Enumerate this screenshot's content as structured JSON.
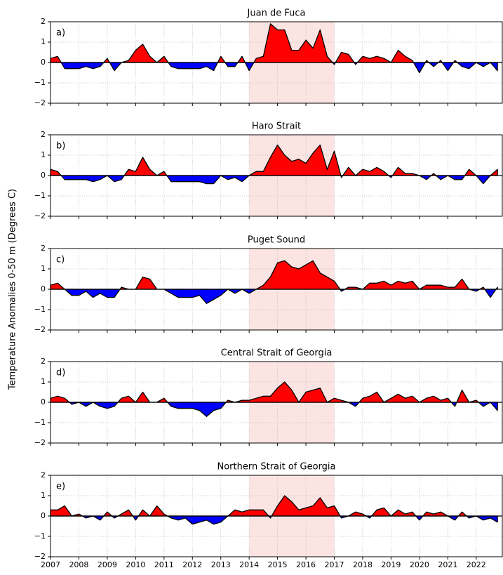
{
  "ylabel": "Temperature Anomalies 0-50 m (Degrees C)",
  "chart_data": [
    {
      "type": "area",
      "title": "Juan de Fuca",
      "panel_label": "a)",
      "positive_color": "#ff0000",
      "negative_color": "#0000ff",
      "highlight": [
        2014,
        2017
      ],
      "highlight_color": "#fbe4e2",
      "grid": true,
      "xlim": [
        2007,
        2022.92
      ],
      "ylim": [
        -2,
        2
      ],
      "xticks": [
        2007,
        2008,
        2009,
        2010,
        2011,
        2012,
        2013,
        2014,
        2015,
        2016,
        2017,
        2018,
        2019,
        2020,
        2021,
        2022
      ],
      "yticks": [
        {
          "value": -2,
          "label": "−2"
        },
        {
          "value": -1,
          "label": "−1"
        },
        0,
        1,
        2
      ],
      "x": [
        2007,
        2007.25,
        2007.5,
        2007.75,
        2008,
        2008.25,
        2008.5,
        2008.75,
        2009,
        2009.25,
        2009.5,
        2009.75,
        2010,
        2010.25,
        2010.5,
        2010.75,
        2011,
        2011.25,
        2011.5,
        2011.75,
        2012,
        2012.25,
        2012.5,
        2012.75,
        2013,
        2013.25,
        2013.5,
        2013.75,
        2014,
        2014.25,
        2014.5,
        2014.75,
        2015,
        2015.25,
        2015.5,
        2015.75,
        2016,
        2016.25,
        2016.5,
        2016.75,
        2017,
        2017.25,
        2017.5,
        2017.75,
        2018,
        2018.25,
        2018.5,
        2018.75,
        2019,
        2019.25,
        2019.5,
        2019.75,
        2020,
        2020.25,
        2020.5,
        2020.75,
        2021,
        2021.25,
        2021.5,
        2021.75,
        2022,
        2022.25,
        2022.5,
        2022.75
      ],
      "values": [
        0.2,
        0.3,
        -0.3,
        -0.3,
        -0.3,
        -0.2,
        -0.3,
        -0.2,
        0.2,
        -0.4,
        0.0,
        0.1,
        0.6,
        0.9,
        0.3,
        0.0,
        0.3,
        -0.2,
        -0.3,
        -0.3,
        -0.3,
        -0.3,
        -0.2,
        -0.4,
        0.3,
        -0.2,
        -0.2,
        0.3,
        -0.4,
        0.2,
        0.3,
        1.9,
        1.6,
        1.6,
        0.6,
        0.6,
        1.1,
        0.7,
        1.6,
        0.3,
        -0.1,
        0.5,
        0.4,
        -0.1,
        0.3,
        0.2,
        0.3,
        0.2,
        0.0,
        0.6,
        0.3,
        0.1,
        -0.5,
        0.1,
        -0.2,
        0.1,
        -0.4,
        0.1,
        -0.2,
        -0.3,
        0.0,
        -0.2,
        0.0,
        -0.4
      ]
    },
    {
      "type": "area",
      "title": "Haro Strait",
      "panel_label": "b)",
      "positive_color": "#ff0000",
      "negative_color": "#0000ff",
      "highlight": [
        2014,
        2017
      ],
      "highlight_color": "#fbe4e2",
      "grid": true,
      "xlim": [
        2007,
        2022.92
      ],
      "ylim": [
        -2,
        2
      ],
      "xticks": [
        2007,
        2008,
        2009,
        2010,
        2011,
        2012,
        2013,
        2014,
        2015,
        2016,
        2017,
        2018,
        2019,
        2020,
        2021,
        2022
      ],
      "yticks": [
        {
          "value": -2,
          "label": "−2"
        },
        {
          "value": -1,
          "label": "−1"
        },
        0,
        1,
        2
      ],
      "x": [
        2007,
        2007.25,
        2007.5,
        2007.75,
        2008,
        2008.25,
        2008.5,
        2008.75,
        2009,
        2009.25,
        2009.5,
        2009.75,
        2010,
        2010.25,
        2010.5,
        2010.75,
        2011,
        2011.25,
        2011.5,
        2011.75,
        2012,
        2012.25,
        2012.5,
        2012.75,
        2013,
        2013.25,
        2013.5,
        2013.75,
        2014,
        2014.25,
        2014.5,
        2014.75,
        2015,
        2015.25,
        2015.5,
        2015.75,
        2016,
        2016.25,
        2016.5,
        2016.75,
        2017,
        2017.25,
        2017.5,
        2017.75,
        2018,
        2018.25,
        2018.5,
        2018.75,
        2019,
        2019.25,
        2019.5,
        2019.75,
        2020,
        2020.25,
        2020.5,
        2020.75,
        2021,
        2021.25,
        2021.5,
        2021.75,
        2022,
        2022.25,
        2022.5,
        2022.75
      ],
      "values": [
        0.3,
        0.2,
        -0.2,
        -0.2,
        -0.2,
        -0.2,
        -0.3,
        -0.2,
        0.0,
        -0.3,
        -0.2,
        0.3,
        0.2,
        0.9,
        0.3,
        0.0,
        0.2,
        -0.3,
        -0.3,
        -0.3,
        -0.3,
        -0.3,
        -0.4,
        -0.4,
        0.0,
        -0.2,
        -0.1,
        -0.3,
        0.0,
        0.2,
        0.2,
        0.9,
        1.5,
        1.0,
        0.7,
        0.8,
        0.6,
        1.1,
        1.5,
        0.3,
        1.2,
        -0.1,
        0.4,
        0.0,
        0.3,
        0.2,
        0.4,
        0.2,
        -0.1,
        0.4,
        0.1,
        0.1,
        0.0,
        -0.2,
        0.1,
        -0.2,
        0.0,
        -0.2,
        -0.2,
        0.3,
        0.0,
        -0.4,
        0.0,
        0.3
      ]
    },
    {
      "type": "area",
      "title": "Puget Sound",
      "panel_label": "c)",
      "positive_color": "#ff0000",
      "negative_color": "#0000ff",
      "highlight": [
        2014,
        2017
      ],
      "highlight_color": "#fbe4e2",
      "grid": true,
      "xlim": [
        2007,
        2022.92
      ],
      "ylim": [
        -2,
        2
      ],
      "xticks": [
        2007,
        2008,
        2009,
        2010,
        2011,
        2012,
        2013,
        2014,
        2015,
        2016,
        2017,
        2018,
        2019,
        2020,
        2021,
        2022
      ],
      "yticks": [
        {
          "value": -2,
          "label": "−2"
        },
        {
          "value": -1,
          "label": "−1"
        },
        0,
        1,
        2
      ],
      "x": [
        2007,
        2007.25,
        2007.5,
        2007.75,
        2008,
        2008.25,
        2008.5,
        2008.75,
        2009,
        2009.25,
        2009.5,
        2009.75,
        2010,
        2010.25,
        2010.5,
        2010.75,
        2011,
        2011.25,
        2011.5,
        2011.75,
        2012,
        2012.25,
        2012.5,
        2012.75,
        2013,
        2013.25,
        2013.5,
        2013.75,
        2014,
        2014.25,
        2014.5,
        2014.75,
        2015,
        2015.25,
        2015.5,
        2015.75,
        2016,
        2016.25,
        2016.5,
        2016.75,
        2017,
        2017.25,
        2017.5,
        2017.75,
        2018,
        2018.25,
        2018.5,
        2018.75,
        2019,
        2019.25,
        2019.5,
        2019.75,
        2020,
        2020.25,
        2020.5,
        2020.75,
        2021,
        2021.25,
        2021.5,
        2021.75,
        2022,
        2022.25,
        2022.5,
        2022.75
      ],
      "values": [
        0.2,
        0.3,
        0.0,
        -0.3,
        -0.3,
        -0.1,
        -0.4,
        -0.2,
        -0.4,
        -0.4,
        0.1,
        0.0,
        0.0,
        0.6,
        0.5,
        0.0,
        0.0,
        -0.2,
        -0.4,
        -0.4,
        -0.4,
        -0.3,
        -0.7,
        -0.5,
        -0.3,
        0.0,
        -0.2,
        0.0,
        -0.2,
        0.0,
        0.2,
        0.6,
        1.3,
        1.4,
        1.1,
        1.0,
        1.2,
        1.4,
        0.8,
        0.6,
        0.4,
        -0.1,
        0.1,
        0.1,
        0.0,
        0.3,
        0.3,
        0.4,
        0.2,
        0.4,
        0.3,
        0.4,
        0.0,
        0.2,
        0.2,
        0.2,
        0.1,
        0.1,
        0.5,
        0.0,
        -0.1,
        0.1,
        -0.4,
        0.1
      ]
    },
    {
      "type": "area",
      "title": "Central Strait of Georgia",
      "panel_label": "d)",
      "positive_color": "#ff0000",
      "negative_color": "#0000ff",
      "highlight": [
        2014,
        2017
      ],
      "highlight_color": "#fbe4e2",
      "grid": true,
      "xlim": [
        2007,
        2022.92
      ],
      "ylim": [
        -2,
        2
      ],
      "xticks": [
        2007,
        2008,
        2009,
        2010,
        2011,
        2012,
        2013,
        2014,
        2015,
        2016,
        2017,
        2018,
        2019,
        2020,
        2021,
        2022
      ],
      "yticks": [
        {
          "value": -2,
          "label": "−2"
        },
        {
          "value": -1,
          "label": "−1"
        },
        0,
        1,
        2
      ],
      "x": [
        2007,
        2007.25,
        2007.5,
        2007.75,
        2008,
        2008.25,
        2008.5,
        2008.75,
        2009,
        2009.25,
        2009.5,
        2009.75,
        2010,
        2010.25,
        2010.5,
        2010.75,
        2011,
        2011.25,
        2011.5,
        2011.75,
        2012,
        2012.25,
        2012.5,
        2012.75,
        2013,
        2013.25,
        2013.5,
        2013.75,
        2014,
        2014.25,
        2014.5,
        2014.75,
        2015,
        2015.25,
        2015.5,
        2015.75,
        2016,
        2016.25,
        2016.5,
        2016.75,
        2017,
        2017.25,
        2017.5,
        2017.75,
        2018,
        2018.25,
        2018.5,
        2018.75,
        2019,
        2019.25,
        2019.5,
        2019.75,
        2020,
        2020.25,
        2020.5,
        2020.75,
        2021,
        2021.25,
        2021.5,
        2021.75,
        2022,
        2022.25,
        2022.5,
        2022.75
      ],
      "values": [
        0.2,
        0.3,
        0.2,
        -0.1,
        0.0,
        -0.2,
        0.0,
        -0.2,
        -0.3,
        -0.2,
        0.2,
        0.3,
        0.0,
        0.5,
        0.0,
        0.0,
        0.2,
        -0.2,
        -0.3,
        -0.3,
        -0.3,
        -0.4,
        -0.7,
        -0.4,
        -0.3,
        0.1,
        0.0,
        0.1,
        0.1,
        0.2,
        0.3,
        0.3,
        0.7,
        1.0,
        0.6,
        0.0,
        0.5,
        0.6,
        0.7,
        0.0,
        0.2,
        0.1,
        0.0,
        -0.2,
        0.2,
        0.3,
        0.5,
        0.0,
        0.2,
        0.4,
        0.2,
        0.3,
        0.0,
        0.2,
        0.3,
        0.1,
        0.2,
        -0.2,
        0.6,
        0.0,
        0.1,
        -0.2,
        0.0,
        -0.4
      ]
    },
    {
      "type": "area",
      "title": "Northern Strait of Georgia",
      "panel_label": "e)",
      "positive_color": "#ff0000",
      "negative_color": "#0000ff",
      "highlight": [
        2014,
        2017
      ],
      "highlight_color": "#fbe4e2",
      "grid": true,
      "xlim": [
        2007,
        2022.92
      ],
      "ylim": [
        -2,
        2
      ],
      "xticks": [
        2007,
        2008,
        2009,
        2010,
        2011,
        2012,
        2013,
        2014,
        2015,
        2016,
        2017,
        2018,
        2019,
        2020,
        2021,
        2022
      ],
      "yticks": [
        {
          "value": -2,
          "label": "−2"
        },
        {
          "value": -1,
          "label": "−1"
        },
        0,
        1,
        2
      ],
      "x": [
        2007,
        2007.25,
        2007.5,
        2007.75,
        2008,
        2008.25,
        2008.5,
        2008.75,
        2009,
        2009.25,
        2009.5,
        2009.75,
        2010,
        2010.25,
        2010.5,
        2010.75,
        2011,
        2011.25,
        2011.5,
        2011.75,
        2012,
        2012.25,
        2012.5,
        2012.75,
        2013,
        2013.25,
        2013.5,
        2013.75,
        2014,
        2014.25,
        2014.5,
        2014.75,
        2015,
        2015.25,
        2015.5,
        2015.75,
        2016,
        2016.25,
        2016.5,
        2016.75,
        2017,
        2017.25,
        2017.5,
        2017.75,
        2018,
        2018.25,
        2018.5,
        2018.75,
        2019,
        2019.25,
        2019.5,
        2019.75,
        2020,
        2020.25,
        2020.5,
        2020.75,
        2021,
        2021.25,
        2021.5,
        2021.75,
        2022,
        2022.25,
        2022.5,
        2022.75
      ],
      "values": [
        0.3,
        0.3,
        0.5,
        0.0,
        0.1,
        -0.1,
        0.0,
        -0.2,
        0.2,
        -0.1,
        0.1,
        0.3,
        -0.2,
        0.3,
        0.0,
        0.5,
        0.1,
        -0.1,
        -0.2,
        -0.1,
        -0.4,
        -0.3,
        -0.2,
        -0.4,
        -0.3,
        0.0,
        0.3,
        0.2,
        0.3,
        0.3,
        0.3,
        -0.1,
        0.5,
        1.0,
        0.7,
        0.3,
        0.4,
        0.5,
        0.9,
        0.4,
        0.5,
        -0.1,
        0.0,
        0.2,
        0.1,
        -0.1,
        0.3,
        0.4,
        0.0,
        0.3,
        0.1,
        0.2,
        -0.2,
        0.2,
        0.1,
        0.2,
        0.0,
        -0.2,
        0.2,
        -0.1,
        0.0,
        -0.2,
        -0.1,
        -0.3
      ]
    }
  ]
}
